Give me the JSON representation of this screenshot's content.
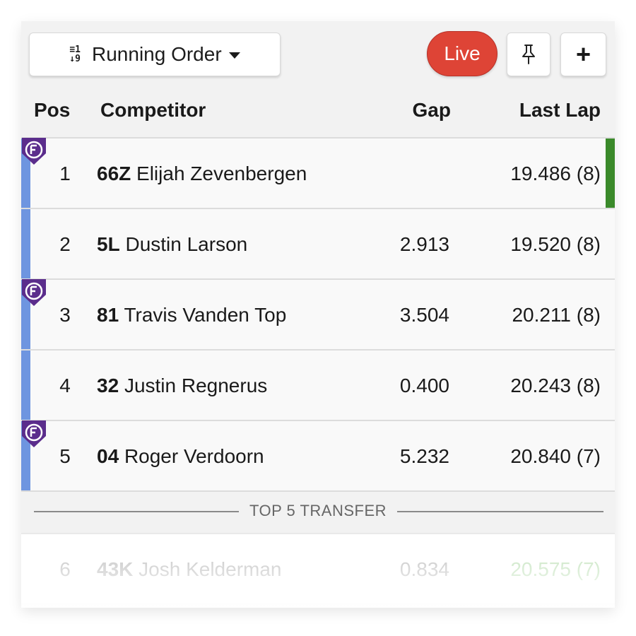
{
  "toolbar": {
    "order_icon_top": "≡1",
    "order_icon_bottom": "↓9",
    "order_label": "Running Order",
    "live_label": "Live",
    "pin_icon": "pin-icon",
    "add_label": "+"
  },
  "header": {
    "pos": "Pos",
    "competitor": "Competitor",
    "gap": "Gap",
    "last_lap": "Last Lap"
  },
  "rows": [
    {
      "pos": "1",
      "number": "66Z",
      "name": "Elijah Zevenbergen",
      "gap": "",
      "last_lap": "19.486 (8)",
      "badge": true,
      "best_lap": true
    },
    {
      "pos": "2",
      "number": "5L",
      "name": "Dustin Larson",
      "gap": "2.913",
      "last_lap": "19.520 (8)",
      "badge": false,
      "best_lap": false
    },
    {
      "pos": "3",
      "number": "81",
      "name": "Travis Vanden Top",
      "gap": "3.504",
      "last_lap": "20.211 (8)",
      "badge": true,
      "best_lap": false
    },
    {
      "pos": "4",
      "number": "32",
      "name": "Justin Regnerus",
      "gap": "0.400",
      "last_lap": "20.243 (8)",
      "badge": false,
      "best_lap": false
    },
    {
      "pos": "5",
      "number": "04",
      "name": "Roger Verdoorn",
      "gap": "5.232",
      "last_lap": "20.840 (7)",
      "badge": true,
      "best_lap": false
    }
  ],
  "transfer_divider": "TOP 5 TRANSFER",
  "faded_row": {
    "pos": "6",
    "number": "43K",
    "name": "Josh Kelderman",
    "gap": "0.834",
    "last_lap": "20.575 (7)"
  },
  "colors": {
    "live": "#de4436",
    "transfer_bar": "#6e95e0",
    "best_lap": "#3a8a2a",
    "badge": "#5b2d8c"
  }
}
